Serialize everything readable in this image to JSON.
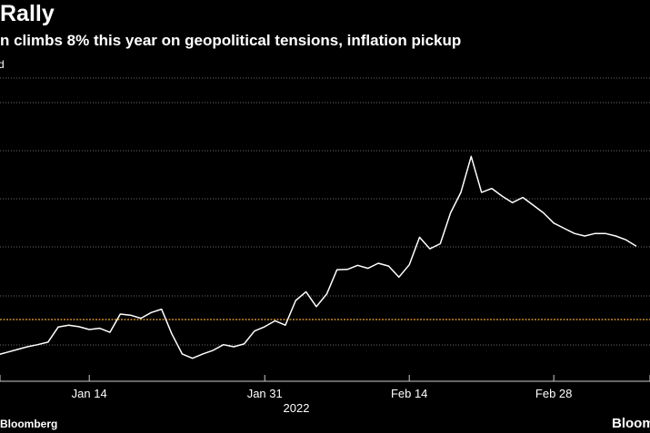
{
  "title": "Rally",
  "subtitle": "n climbs 8% this year on geopolitical tensions, inflation pickup",
  "unit_label": "d",
  "source": "Bloomberg",
  "logo": "Bloom",
  "colors": {
    "background": "#000000",
    "line": "#ffffff",
    "gridline": "#6b6b6b",
    "reference_line": "#f0a830",
    "axis": "#cccccc"
  },
  "chart_data": {
    "type": "line",
    "title": "Rally",
    "subtitle": "n climbs 8% this year on geopolitical tensions, inflation pickup",
    "xlabel": "",
    "ylabel": "",
    "x_tick_labels": [
      "Jan 14",
      "Jan 31",
      "Feb 14",
      "Feb 28"
    ],
    "x_tick_days": [
      13,
      30,
      44,
      58
    ],
    "x_year_label": "2022",
    "x_range_days": [
      4,
      66
    ],
    "y_range": [
      0,
      1
    ],
    "y_gridline_levels": [
      0.05,
      0.1667,
      0.3333,
      0.5,
      0.6667,
      0.8333
    ],
    "reference_value": 0.1225,
    "grid": true,
    "legend": "none",
    "series": [
      {
        "day": [
          4,
          5,
          6,
          7,
          8,
          9,
          10,
          11,
          12,
          13,
          14,
          15,
          16,
          17,
          18,
          19,
          20,
          21,
          22,
          23,
          24,
          25,
          26,
          27,
          28,
          29,
          30,
          31,
          32,
          33,
          34,
          35,
          36,
          37,
          38,
          39,
          40,
          41,
          42,
          43,
          44,
          45,
          46,
          47,
          48,
          49,
          50,
          51,
          52,
          53,
          54,
          55,
          56,
          57,
          58,
          59,
          60,
          61,
          62,
          63,
          64,
          65,
          66
        ],
        "values": [
          0.006,
          0.017,
          0.028,
          0.039,
          0.047,
          0.057,
          0.116,
          0.123,
          0.117,
          0.106,
          0.111,
          0.095,
          0.166,
          0.162,
          0.15,
          0.172,
          0.185,
          0.089,
          0.011,
          -0.006,
          0.011,
          0.025,
          0.047,
          0.039,
          0.05,
          0.1,
          0.117,
          0.14,
          0.123,
          0.219,
          0.253,
          0.195,
          0.244,
          0.339,
          0.34,
          0.356,
          0.344,
          0.364,
          0.353,
          0.31,
          0.358,
          0.465,
          0.42,
          0.44,
          0.56,
          0.64,
          0.78,
          0.64,
          0.655,
          0.625,
          0.6,
          0.62,
          0.59,
          0.56,
          0.52,
          0.5,
          0.48,
          0.47,
          0.48,
          0.48,
          0.47,
          0.455,
          0.43
        ]
      }
    ]
  }
}
